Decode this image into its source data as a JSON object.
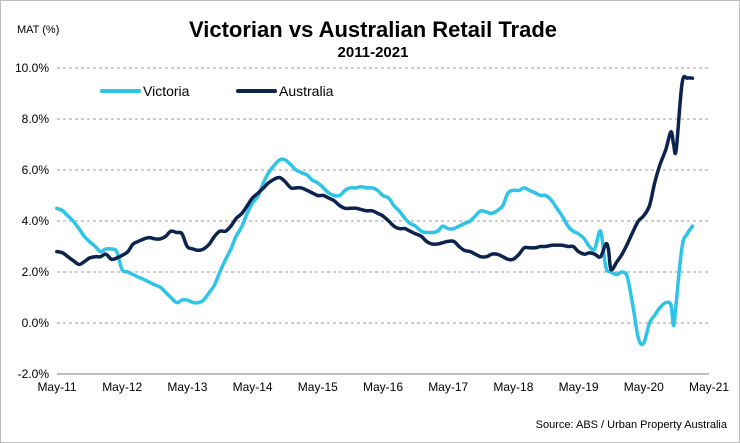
{
  "chart_data": {
    "type": "line",
    "title": "Victorian vs Australian Retail Trade",
    "subtitle": "2011-2021",
    "ylabel": "MAT (%)",
    "xlabel": "",
    "source": "Source: ABS / Urban Property Australia",
    "x_ticks": [
      "May-11",
      "May-12",
      "May-13",
      "May-14",
      "May-15",
      "May-16",
      "May-17",
      "May-18",
      "May-19",
      "May-20",
      "May-21"
    ],
    "y_ticks": [
      "-2.0%",
      "0.0%",
      "2.0%",
      "4.0%",
      "6.0%",
      "8.0%",
      "10.0%"
    ],
    "ylim": [
      -2,
      10
    ],
    "xlim": [
      2011.333,
      2021.333
    ],
    "grid": "horizontal dashed",
    "legend_position": "top-left",
    "series": [
      {
        "name": "Victoria",
        "color": "#2ec4e8",
        "points": [
          [
            2011.33,
            4.5
          ],
          [
            2011.42,
            4.4
          ],
          [
            2011.5,
            4.2
          ],
          [
            2011.58,
            4.0
          ],
          [
            2011.67,
            3.7
          ],
          [
            2011.75,
            3.4
          ],
          [
            2011.83,
            3.2
          ],
          [
            2011.92,
            3.0
          ],
          [
            2012.0,
            2.8
          ],
          [
            2012.08,
            2.9
          ],
          [
            2012.17,
            2.9
          ],
          [
            2012.25,
            2.8
          ],
          [
            2012.33,
            2.1
          ],
          [
            2012.42,
            2.0
          ],
          [
            2012.5,
            1.9
          ],
          [
            2012.58,
            1.8
          ],
          [
            2012.67,
            1.7
          ],
          [
            2012.75,
            1.6
          ],
          [
            2012.83,
            1.5
          ],
          [
            2012.92,
            1.4
          ],
          [
            2013.0,
            1.2
          ],
          [
            2013.08,
            1.0
          ],
          [
            2013.17,
            0.8
          ],
          [
            2013.25,
            0.9
          ],
          [
            2013.33,
            0.9
          ],
          [
            2013.42,
            0.8
          ],
          [
            2013.5,
            0.8
          ],
          [
            2013.58,
            0.9
          ],
          [
            2013.67,
            1.2
          ],
          [
            2013.75,
            1.5
          ],
          [
            2013.83,
            2.0
          ],
          [
            2013.92,
            2.5
          ],
          [
            2014.0,
            2.9
          ],
          [
            2014.08,
            3.4
          ],
          [
            2014.17,
            3.8
          ],
          [
            2014.25,
            4.3
          ],
          [
            2014.33,
            4.7
          ],
          [
            2014.42,
            5.0
          ],
          [
            2014.5,
            5.5
          ],
          [
            2014.58,
            5.9
          ],
          [
            2014.67,
            6.2
          ],
          [
            2014.75,
            6.4
          ],
          [
            2014.83,
            6.4
          ],
          [
            2014.92,
            6.2
          ],
          [
            2015.0,
            6.0
          ],
          [
            2015.08,
            5.9
          ],
          [
            2015.17,
            5.8
          ],
          [
            2015.25,
            5.6
          ],
          [
            2015.33,
            5.5
          ],
          [
            2015.42,
            5.3
          ],
          [
            2015.5,
            5.1
          ],
          [
            2015.58,
            5.0
          ],
          [
            2015.67,
            5.0
          ],
          [
            2015.75,
            5.2
          ],
          [
            2015.83,
            5.3
          ],
          [
            2015.92,
            5.3
          ],
          [
            2016.0,
            5.35
          ],
          [
            2016.08,
            5.3
          ],
          [
            2016.17,
            5.3
          ],
          [
            2016.25,
            5.2
          ],
          [
            2016.33,
            5.0
          ],
          [
            2016.42,
            4.9
          ],
          [
            2016.5,
            4.6
          ],
          [
            2016.58,
            4.4
          ],
          [
            2016.67,
            4.1
          ],
          [
            2016.75,
            3.9
          ],
          [
            2016.83,
            3.8
          ],
          [
            2016.92,
            3.6
          ],
          [
            2017.0,
            3.55
          ],
          [
            2017.08,
            3.55
          ],
          [
            2017.17,
            3.6
          ],
          [
            2017.25,
            3.8
          ],
          [
            2017.33,
            3.7
          ],
          [
            2017.42,
            3.7
          ],
          [
            2017.5,
            3.8
          ],
          [
            2017.58,
            3.9
          ],
          [
            2017.67,
            4.0
          ],
          [
            2017.75,
            4.2
          ],
          [
            2017.83,
            4.4
          ],
          [
            2017.92,
            4.35
          ],
          [
            2018.0,
            4.3
          ],
          [
            2018.08,
            4.4
          ],
          [
            2018.17,
            4.6
          ],
          [
            2018.25,
            5.1
          ],
          [
            2018.33,
            5.2
          ],
          [
            2018.42,
            5.2
          ],
          [
            2018.5,
            5.3
          ],
          [
            2018.58,
            5.2
          ],
          [
            2018.67,
            5.1
          ],
          [
            2018.75,
            5.0
          ],
          [
            2018.83,
            5.0
          ],
          [
            2018.92,
            4.8
          ],
          [
            2019.0,
            4.5
          ],
          [
            2019.08,
            4.2
          ],
          [
            2019.17,
            3.8
          ],
          [
            2019.25,
            3.6
          ],
          [
            2019.33,
            3.5
          ],
          [
            2019.42,
            3.3
          ],
          [
            2019.5,
            3.0
          ],
          [
            2019.58,
            2.9
          ],
          [
            2019.67,
            3.6
          ],
          [
            2019.75,
            2.2
          ],
          [
            2019.83,
            2.0
          ],
          [
            2019.92,
            1.9
          ],
          [
            2020.0,
            2.0
          ],
          [
            2020.08,
            1.8
          ],
          [
            2020.17,
            0.6
          ],
          [
            2020.25,
            -0.6
          ],
          [
            2020.33,
            -0.8
          ],
          [
            2020.42,
            0.0
          ],
          [
            2020.5,
            0.3
          ],
          [
            2020.58,
            0.6
          ],
          [
            2020.67,
            0.8
          ],
          [
            2020.75,
            0.7
          ],
          [
            2020.79,
            -0.1
          ],
          [
            2020.83,
            0.8
          ],
          [
            2020.92,
            3.0
          ],
          [
            2021.0,
            3.5
          ],
          [
            2021.08,
            3.8
          ]
        ]
      },
      {
        "name": "Australia",
        "color": "#0c2350",
        "points": [
          [
            2011.33,
            2.8
          ],
          [
            2011.42,
            2.75
          ],
          [
            2011.5,
            2.6
          ],
          [
            2011.58,
            2.45
          ],
          [
            2011.67,
            2.3
          ],
          [
            2011.75,
            2.4
          ],
          [
            2011.83,
            2.55
          ],
          [
            2011.92,
            2.6
          ],
          [
            2012.0,
            2.6
          ],
          [
            2012.08,
            2.7
          ],
          [
            2012.17,
            2.5
          ],
          [
            2012.25,
            2.55
          ],
          [
            2012.33,
            2.65
          ],
          [
            2012.42,
            2.8
          ],
          [
            2012.5,
            3.1
          ],
          [
            2012.58,
            3.2
          ],
          [
            2012.67,
            3.3
          ],
          [
            2012.75,
            3.35
          ],
          [
            2012.83,
            3.3
          ],
          [
            2012.92,
            3.3
          ],
          [
            2013.0,
            3.4
          ],
          [
            2013.08,
            3.6
          ],
          [
            2013.17,
            3.55
          ],
          [
            2013.25,
            3.5
          ],
          [
            2013.33,
            3.0
          ],
          [
            2013.42,
            2.9
          ],
          [
            2013.5,
            2.85
          ],
          [
            2013.58,
            2.9
          ],
          [
            2013.67,
            3.1
          ],
          [
            2013.75,
            3.4
          ],
          [
            2013.83,
            3.6
          ],
          [
            2013.92,
            3.6
          ],
          [
            2014.0,
            3.8
          ],
          [
            2014.08,
            4.1
          ],
          [
            2014.17,
            4.3
          ],
          [
            2014.25,
            4.6
          ],
          [
            2014.33,
            4.9
          ],
          [
            2014.42,
            5.1
          ],
          [
            2014.5,
            5.3
          ],
          [
            2014.58,
            5.5
          ],
          [
            2014.67,
            5.65
          ],
          [
            2014.75,
            5.7
          ],
          [
            2014.83,
            5.55
          ],
          [
            2014.92,
            5.3
          ],
          [
            2015.0,
            5.3
          ],
          [
            2015.08,
            5.3
          ],
          [
            2015.17,
            5.2
          ],
          [
            2015.25,
            5.1
          ],
          [
            2015.33,
            5.0
          ],
          [
            2015.42,
            5.0
          ],
          [
            2015.5,
            4.9
          ],
          [
            2015.58,
            4.8
          ],
          [
            2015.67,
            4.6
          ],
          [
            2015.75,
            4.5
          ],
          [
            2015.83,
            4.5
          ],
          [
            2015.92,
            4.5
          ],
          [
            2016.0,
            4.45
          ],
          [
            2016.08,
            4.4
          ],
          [
            2016.17,
            4.4
          ],
          [
            2016.25,
            4.3
          ],
          [
            2016.33,
            4.2
          ],
          [
            2016.42,
            4.0
          ],
          [
            2016.5,
            3.8
          ],
          [
            2016.58,
            3.7
          ],
          [
            2016.67,
            3.7
          ],
          [
            2016.75,
            3.6
          ],
          [
            2016.83,
            3.5
          ],
          [
            2016.92,
            3.4
          ],
          [
            2017.0,
            3.2
          ],
          [
            2017.08,
            3.1
          ],
          [
            2017.17,
            3.1
          ],
          [
            2017.25,
            3.15
          ],
          [
            2017.33,
            3.2
          ],
          [
            2017.42,
            3.2
          ],
          [
            2017.5,
            3.0
          ],
          [
            2017.58,
            2.85
          ],
          [
            2017.67,
            2.8
          ],
          [
            2017.75,
            2.7
          ],
          [
            2017.83,
            2.6
          ],
          [
            2017.92,
            2.6
          ],
          [
            2018.0,
            2.7
          ],
          [
            2018.08,
            2.7
          ],
          [
            2018.17,
            2.6
          ],
          [
            2018.25,
            2.5
          ],
          [
            2018.33,
            2.5
          ],
          [
            2018.42,
            2.7
          ],
          [
            2018.5,
            2.95
          ],
          [
            2018.58,
            2.95
          ],
          [
            2018.67,
            2.95
          ],
          [
            2018.75,
            3.0
          ],
          [
            2018.83,
            3.0
          ],
          [
            2018.92,
            3.05
          ],
          [
            2019.0,
            3.05
          ],
          [
            2019.08,
            3.05
          ],
          [
            2019.17,
            3.0
          ],
          [
            2019.25,
            3.0
          ],
          [
            2019.33,
            2.8
          ],
          [
            2019.42,
            2.7
          ],
          [
            2019.5,
            2.75
          ],
          [
            2019.58,
            2.7
          ],
          [
            2019.67,
            2.6
          ],
          [
            2019.75,
            3.1
          ],
          [
            2019.79,
            2.9
          ],
          [
            2019.83,
            2.1
          ],
          [
            2019.92,
            2.4
          ],
          [
            2020.0,
            2.7
          ],
          [
            2020.08,
            3.1
          ],
          [
            2020.17,
            3.6
          ],
          [
            2020.25,
            4.0
          ],
          [
            2020.33,
            4.2
          ],
          [
            2020.42,
            4.6
          ],
          [
            2020.5,
            5.5
          ],
          [
            2020.58,
            6.2
          ],
          [
            2020.67,
            6.8
          ],
          [
            2020.75,
            7.5
          ],
          [
            2020.79,
            7.0
          ],
          [
            2020.83,
            6.8
          ],
          [
            2020.92,
            9.4
          ],
          [
            2021.0,
            9.6
          ],
          [
            2021.08,
            9.6
          ]
        ]
      }
    ]
  }
}
